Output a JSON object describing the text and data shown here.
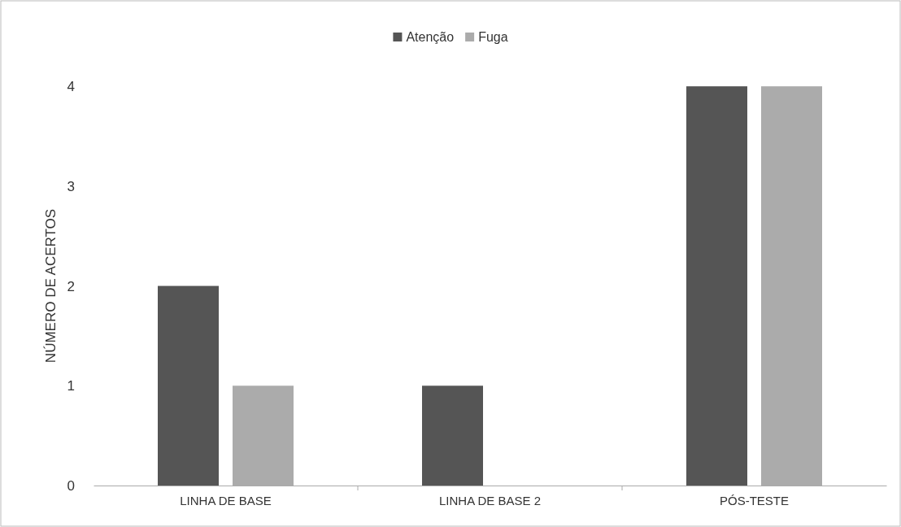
{
  "chart_data": {
    "type": "bar",
    "ylabel": "NÚMERO  DE ACERTOS",
    "categories": [
      "LINHA DE BASE",
      "LINHA DE BASE 2",
      "PÓS-TESTE"
    ],
    "series": [
      {
        "name": "Atenção",
        "color": "#555555",
        "values": [
          2,
          1,
          4
        ]
      },
      {
        "name": "Fuga",
        "color": "#ababab",
        "values": [
          1,
          0,
          4
        ]
      }
    ],
    "ylim": [
      0,
      4.05
    ],
    "yticks": [
      0,
      1,
      2,
      3,
      4
    ],
    "grid": false,
    "legend": "top"
  }
}
